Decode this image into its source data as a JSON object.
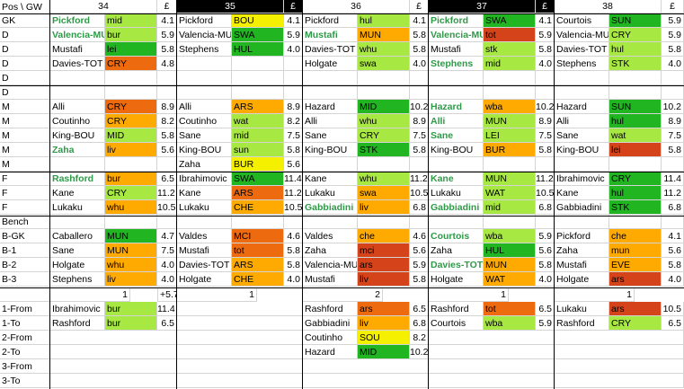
{
  "corner": "Pos \\ GW",
  "pound": "£",
  "fdr_colors": {
    "1": "#21b521",
    "2": "#a8e842",
    "3": "#f4f000",
    "4": "#ffaa00",
    "5": "#ee6a0e",
    "6": "#d4431a"
  },
  "gameweeks": [
    {
      "gw": "34",
      "dark": false
    },
    {
      "gw": "35",
      "dark": true
    },
    {
      "gw": "36",
      "dark": false
    },
    {
      "gw": "37",
      "dark": true
    },
    {
      "gw": "38",
      "dark": false
    }
  ],
  "positions": [
    "GK",
    "D",
    "D",
    "D",
    "D",
    "D",
    "M",
    "M",
    "M",
    "M",
    "M",
    "F",
    "F",
    "F",
    "Bench",
    "B-GK",
    "B-1",
    "B-2",
    "B-3",
    "",
    "1-From",
    "1-To",
    "2-From",
    "2-To",
    "3-From",
    "3-To"
  ],
  "grid": [
    [
      [
        "Pickford",
        "mid",
        2,
        "4.1",
        1
      ],
      [
        "Pickford",
        "BOU",
        3,
        "4.1",
        0
      ],
      [
        "Pickford",
        "hul",
        2,
        "4.1",
        0
      ],
      [
        "Pickford",
        "SWA",
        1,
        "4.1",
        1
      ],
      [
        "Courtois",
        "SUN",
        1,
        "5.9",
        0
      ]
    ],
    [
      [
        "Valencia-MU",
        "bur",
        2,
        "5.9",
        1
      ],
      [
        "Valencia-MU",
        "SWA",
        1,
        "5.9",
        0
      ],
      [
        "Mustafi",
        "MUN",
        4,
        "5.8",
        1
      ],
      [
        "Valencia-MU",
        "tot",
        6,
        "5.9",
        1
      ],
      [
        "Valencia-MU",
        "CRY",
        2,
        "5.9",
        0
      ]
    ],
    [
      [
        "Mustafi",
        "lei",
        1,
        "5.8",
        0
      ],
      [
        "Stephens",
        "HUL",
        1,
        "4.0",
        0
      ],
      [
        "Davies-TOT",
        "whu",
        2,
        "5.8",
        0
      ],
      [
        "Mustafi",
        "stk",
        2,
        "5.8",
        0
      ],
      [
        "Davies-TOT",
        "hul",
        2,
        "5.8",
        0
      ]
    ],
    [
      [
        "Davies-TOT",
        "CRY",
        5,
        "4.8",
        0
      ],
      null,
      [
        "Holgate",
        "swa",
        2,
        "4.0",
        0
      ],
      [
        "Stephens",
        "mid",
        2,
        "4.0",
        1
      ],
      [
        "Stephens",
        "STK",
        2,
        "4.0",
        0
      ]
    ],
    [
      null,
      null,
      null,
      null,
      null
    ],
    [
      null,
      null,
      null,
      null,
      null
    ],
    [
      [
        "Alli",
        "CRY",
        5,
        "8.9",
        0
      ],
      [
        "Alli",
        "ARS",
        4,
        "8.9",
        0
      ],
      [
        "Hazard",
        "MID",
        1,
        "10.2",
        0
      ],
      [
        "Hazard",
        "wba",
        4,
        "10.2",
        1
      ],
      [
        "Hazard",
        "SUN",
        1,
        "10.2",
        0
      ]
    ],
    [
      [
        "Coutinho",
        "CRY",
        4,
        "8.2",
        0
      ],
      [
        "Coutinho",
        "wat",
        2,
        "8.2",
        0
      ],
      [
        "Alli",
        "whu",
        2,
        "8.9",
        0
      ],
      [
        "Alli",
        "MUN",
        2,
        "8.9",
        1
      ],
      [
        "Alli",
        "hul",
        1,
        "8.9",
        0
      ]
    ],
    [
      [
        "King-BOU",
        "MID",
        2,
        "5.8",
        0
      ],
      [
        "Sane",
        "mid",
        2,
        "7.5",
        0
      ],
      [
        "Sane",
        "CRY",
        2,
        "7.5",
        0
      ],
      [
        "Sane",
        "LEI",
        2,
        "7.5",
        1
      ],
      [
        "Sane",
        "wat",
        2,
        "7.5",
        0
      ]
    ],
    [
      [
        "Zaha",
        "liv",
        4,
        "5.6",
        1
      ],
      [
        "King-BOU",
        "sun",
        2,
        "5.8",
        0
      ],
      [
        "King-BOU",
        "STK",
        1,
        "5.8",
        0
      ],
      [
        "King-BOU",
        "BUR",
        4,
        "5.8",
        0
      ],
      [
        "King-BOU",
        "lei",
        6,
        "5.8",
        0
      ]
    ],
    [
      null,
      [
        "Zaha",
        "BUR",
        3,
        "5.6",
        0
      ],
      null,
      null,
      null
    ],
    [
      [
        "Rashford",
        "bur",
        4,
        "6.5",
        1
      ],
      [
        "Ibrahimovic",
        "SWA",
        1,
        "11.4",
        0
      ],
      [
        "Kane",
        "whu",
        2,
        "11.2",
        0
      ],
      [
        "Kane",
        "MUN",
        2,
        "11.2",
        1
      ],
      [
        "Ibrahimovic",
        "CRY",
        1,
        "11.4",
        0
      ]
    ],
    [
      [
        "Kane",
        "CRY",
        2,
        "11.2",
        0
      ],
      [
        "Kane",
        "ARS",
        5,
        "11.2",
        0
      ],
      [
        "Lukaku",
        "swa",
        4,
        "10.5",
        0
      ],
      [
        "Lukaku",
        "WAT",
        2,
        "10.5",
        0
      ],
      [
        "Kane",
        "hul",
        1,
        "11.2",
        0
      ]
    ],
    [
      [
        "Lukaku",
        "whu",
        4,
        "10.5",
        0
      ],
      [
        "Lukaku",
        "CHE",
        4,
        "10.5",
        0
      ],
      [
        "Gabbiadini",
        "liv",
        4,
        "6.8",
        1
      ],
      [
        "Gabbiadini",
        "mid",
        2,
        "6.8",
        1
      ],
      [
        "Gabbiadini",
        "STK",
        1,
        "6.8",
        0
      ]
    ],
    [
      null,
      null,
      null,
      null,
      null
    ],
    [
      [
        "Caballero",
        "MUN",
        1,
        "4.7",
        0
      ],
      [
        "Valdes",
        "MCI",
        5,
        "4.6",
        0
      ],
      [
        "Valdes",
        "che",
        4,
        "4.6",
        0
      ],
      [
        "Courtois",
        "wba",
        2,
        "5.9",
        1
      ],
      [
        "Pickford",
        "che",
        4,
        "4.1",
        0
      ]
    ],
    [
      [
        "Sane",
        "MUN",
        4,
        "7.5",
        0
      ],
      [
        "Mustafi",
        "tot",
        5,
        "5.8",
        0
      ],
      [
        "Zaha",
        "mci",
        6,
        "5.6",
        0
      ],
      [
        "Zaha",
        "HUL",
        1,
        "5.6",
        0
      ],
      [
        "Zaha",
        "mun",
        4,
        "5.6",
        0
      ]
    ],
    [
      [
        "Holgate",
        "whu",
        4,
        "4.0",
        0
      ],
      [
        "Davies-TOT",
        "ARS",
        4,
        "5.8",
        0
      ],
      [
        "Valencia-MU",
        "ars",
        6,
        "5.9",
        0
      ],
      [
        "Davies-TOT",
        "MUN",
        4,
        "5.8",
        1
      ],
      [
        "Mustafi",
        "EVE",
        4,
        "5.8",
        0
      ]
    ],
    [
      [
        "Stephens",
        "liv",
        4,
        "4.0",
        0
      ],
      [
        "Holgate",
        "CHE",
        4,
        "4.0",
        0
      ],
      [
        "Mustafi",
        "liv",
        6,
        "5.8",
        0
      ],
      [
        "Holgate",
        "WAT",
        4,
        "4.0",
        0
      ],
      [
        "Holgate",
        "ars",
        6,
        "4.0",
        0
      ]
    ]
  ],
  "transfer_counts": [
    "1",
    "1",
    "2",
    "1",
    "1"
  ],
  "bank": "+5.7",
  "transfers": [
    [
      [
        "Ibrahimovic",
        "bur",
        2,
        "11.4"
      ],
      null,
      [
        "Rashford",
        "ars",
        5,
        "6.5"
      ],
      [
        "Rashford",
        "tot",
        5,
        "6.5"
      ],
      [
        "Lukaku",
        "ars",
        6,
        "10.5"
      ]
    ],
    [
      [
        "Rashford",
        "bur",
        2,
        "6.5"
      ],
      null,
      [
        "Gabbiadini",
        "liv",
        4,
        "6.8"
      ],
      [
        "Courtois",
        "wba",
        2,
        "5.9"
      ],
      [
        "Rashford",
        "CRY",
        2,
        "6.5"
      ]
    ],
    [
      null,
      null,
      [
        "Coutinho",
        "SOU",
        3,
        "8.2"
      ],
      null,
      null
    ],
    [
      null,
      null,
      [
        "Hazard",
        "MID",
        1,
        "10.2"
      ],
      null,
      null
    ],
    [
      null,
      null,
      null,
      null,
      null
    ],
    [
      null,
      null,
      null,
      null,
      null
    ]
  ]
}
